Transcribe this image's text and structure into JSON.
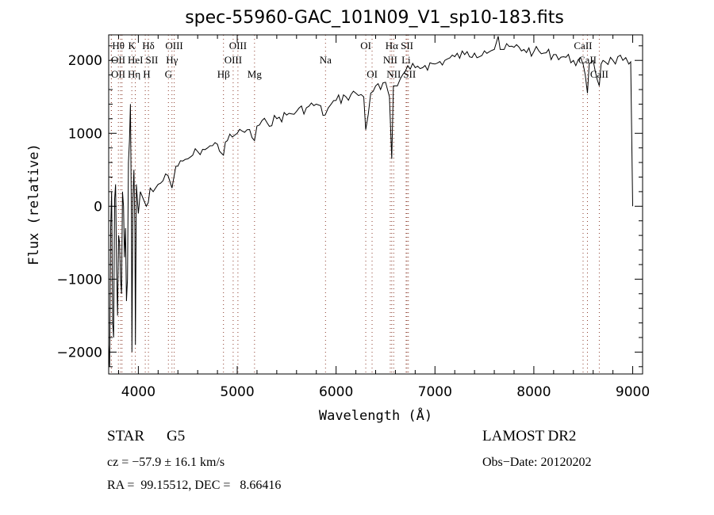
{
  "chart_data": {
    "type": "line",
    "title": "spec-55960-GAC_101N09_V1_sp10-183.fits",
    "xlabel": "Wavelength (Å)",
    "ylabel": "Flux (relative)",
    "xlim": [
      3700,
      9100
    ],
    "ylim": [
      -2300,
      2350
    ],
    "xticks": [
      4000,
      5000,
      6000,
      7000,
      8000,
      9000
    ],
    "yticks": [
      -2000,
      -1000,
      0,
      1000,
      2000
    ],
    "grid": false,
    "series": [
      {
        "name": "spectrum",
        "x": [
          3700,
          3710,
          3720,
          3730,
          3740,
          3750,
          3760,
          3770,
          3780,
          3790,
          3800,
          3810,
          3820,
          3830,
          3840,
          3850,
          3860,
          3870,
          3880,
          3890,
          3900,
          3910,
          3920,
          3930,
          3935,
          3945,
          3955,
          3965,
          3970,
          3980,
          3990,
          4000,
          4020,
          4050,
          4080,
          4100,
          4120,
          4150,
          4200,
          4250,
          4300,
          4340,
          4380,
          4400,
          4450,
          4500,
          4550,
          4600,
          4650,
          4700,
          4750,
          4800,
          4861,
          4880,
          4900,
          4950,
          5000,
          5050,
          5100,
          5175,
          5200,
          5300,
          5400,
          5500,
          5600,
          5700,
          5800,
          5890,
          5950,
          6000,
          6100,
          6200,
          6280,
          6300,
          6350,
          6400,
          6450,
          6500,
          6540,
          6563,
          6580,
          6620,
          6650,
          6700,
          6750,
          6800,
          6900,
          7000,
          7100,
          7200,
          7300,
          7400,
          7500,
          7600,
          7640,
          7660,
          7700,
          7800,
          7900,
          8000,
          8100,
          8200,
          8300,
          8400,
          8498,
          8542,
          8560,
          8600,
          8662,
          8680,
          8700,
          8800,
          8900,
          8960,
          8980,
          9000
        ],
        "y": [
          -1900,
          -2200,
          -300,
          200,
          -1600,
          -1800,
          100,
          300,
          -900,
          -1500,
          -400,
          -500,
          -1000,
          -1200,
          200,
          0,
          -700,
          -300,
          -1300,
          -1000,
          600,
          900,
          1400,
          -200,
          -2000,
          100,
          500,
          -300,
          -1900,
          300,
          100,
          -100,
          200,
          100,
          0,
          50,
          250,
          200,
          300,
          350,
          420,
          250,
          550,
          550,
          620,
          650,
          700,
          750,
          780,
          800,
          830,
          850,
          700,
          880,
          900,
          950,
          1000,
          1030,
          1050,
          900,
          1100,
          1150,
          1200,
          1250,
          1300,
          1350,
          1400,
          1250,
          1400,
          1450,
          1500,
          1550,
          1500,
          1050,
          1550,
          1650,
          1600,
          1700,
          1500,
          650,
          1650,
          1650,
          1750,
          1850,
          1880,
          1900,
          1930,
          1950,
          2000,
          2050,
          2080,
          2100,
          2130,
          2150,
          2330,
          2150,
          2150,
          2180,
          2150,
          2120,
          2100,
          2080,
          2050,
          2000,
          1950,
          1550,
          1950,
          2000,
          1650,
          1950,
          2000,
          2000,
          2000,
          1950,
          1980,
          0
        ]
      }
    ],
    "line_marks": [
      {
        "label": "Hθ",
        "wave": 3798,
        "row": 0
      },
      {
        "label": "K",
        "wave": 3934,
        "row": 0
      },
      {
        "label": "Hδ",
        "wave": 4102,
        "row": 0
      },
      {
        "label": "OIII",
        "wave": 4363,
        "row": 0
      },
      {
        "label": "OIII",
        "wave": 5007,
        "row": 0
      },
      {
        "label": "OI",
        "wave": 6300,
        "row": 0
      },
      {
        "label": "Hα",
        "wave": 6563,
        "row": 0
      },
      {
        "label": "SII",
        "wave": 6717,
        "row": 0
      },
      {
        "label": "CaII",
        "wave": 8498,
        "row": 0
      },
      {
        "label": "OII",
        "wave": 3727,
        "row": 1
      },
      {
        "label": "HeI",
        "wave": 3820,
        "row": 1
      },
      {
        "label": "SII",
        "wave": 4070,
        "row": 1
      },
      {
        "label": "Hγ",
        "wave": 4340,
        "row": 1
      },
      {
        "label": "OIII",
        "wave": 4959,
        "row": 1
      },
      {
        "label": "Na",
        "wave": 5893,
        "row": 1
      },
      {
        "label": "NII",
        "wave": 6548,
        "row": 1
      },
      {
        "label": "Li",
        "wave": 6708,
        "row": 1
      },
      {
        "label": "CaII",
        "wave": 8542,
        "row": 1
      },
      {
        "label": "OII",
        "wave": 3727,
        "row": 2
      },
      {
        "label": "Hη",
        "wave": 3835,
        "row": 2
      },
      {
        "label": "H",
        "wave": 3969,
        "row": 2
      },
      {
        "label": "G",
        "wave": 4304,
        "row": 2
      },
      {
        "label": "Hβ",
        "wave": 4861,
        "row": 2
      },
      {
        "label": "Mg",
        "wave": 5175,
        "row": 2
      },
      {
        "label": "OI",
        "wave": 6364,
        "row": 2
      },
      {
        "label": "NII",
        "wave": 6583,
        "row": 2
      },
      {
        "label": "SII",
        "wave": 6731,
        "row": 2
      },
      {
        "label": "CaII",
        "wave": 8662,
        "row": 2
      }
    ],
    "colors": {
      "spectrum": "#000000",
      "line_marks": "#8b3a2a"
    }
  },
  "info": {
    "object_class": "STAR",
    "subclass": "G5",
    "survey": "LAMOST DR2",
    "redshift": "cz = −57.9 ± 16.1 km/s",
    "obs_date": "Obs−Date: 20120202",
    "coords": "RA =  99.15512, DEC =   8.66416"
  }
}
